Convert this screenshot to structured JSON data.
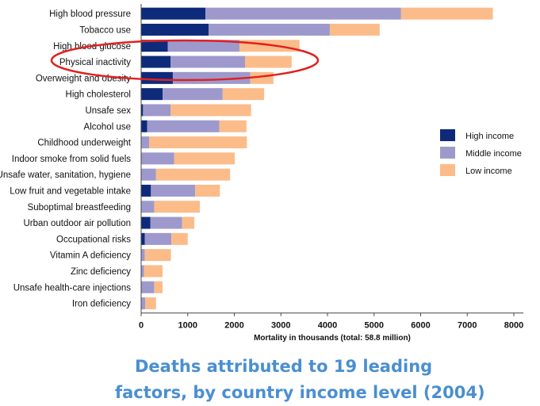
{
  "chart_data": {
    "type": "bar",
    "orientation": "horizontal",
    "stacked": true,
    "categories": [
      "High blood pressure",
      "Tobacco use",
      "High blood glucose",
      "Physical inactivity",
      "Overweight and obesity",
      "High cholesterol",
      "Unsafe sex",
      "Alcohol use",
      "Childhood underweight",
      "Indoor smoke from solid fuels",
      "Unsafe water, sanitation, hygiene",
      "Low fruit and vegetable intake",
      "Suboptimal breastfeeding",
      "Urban outdoor air pollution",
      "Occupational risks",
      "Vitamin A deficiency",
      "Zinc deficiency",
      "Unsafe health-care injections",
      "Iron deficiency"
    ],
    "series": [
      {
        "name": "High income",
        "values": [
          1380,
          1450,
          570,
          630,
          680,
          460,
          40,
          130,
          0,
          0,
          0,
          210,
          0,
          200,
          80,
          0,
          0,
          0,
          0
        ]
      },
      {
        "name": "Middle income",
        "values": [
          4200,
          2600,
          1540,
          1600,
          1660,
          1290,
          590,
          1550,
          170,
          710,
          320,
          950,
          280,
          680,
          570,
          80,
          60,
          280,
          90
        ]
      },
      {
        "name": "Low income",
        "values": [
          1970,
          1070,
          1290,
          1000,
          500,
          890,
          1730,
          580,
          2100,
          1300,
          1590,
          530,
          980,
          260,
          350,
          560,
          400,
          180,
          230
        ]
      }
    ],
    "xlim": [
      0,
      8000
    ],
    "xticks": [
      "0",
      "1000",
      "2000",
      "3000",
      "4000",
      "5000",
      "6000",
      "7000",
      "8000"
    ],
    "xlabel": "Mortality in thousands (total: 58.8 million)",
    "ylabel": "",
    "legend_position": "right",
    "highlight": "Physical inactivity",
    "colors": {
      "high": "#0d2b7a",
      "middle": "#9e99cc",
      "low": "#fbbc8a",
      "highlight": "#e02020",
      "axis": "#444444"
    }
  },
  "caption": {
    "line1": "Deaths attributed to 19 leading",
    "line2": "factors, by country income level (2004)",
    "color": "#4a8fd0"
  }
}
